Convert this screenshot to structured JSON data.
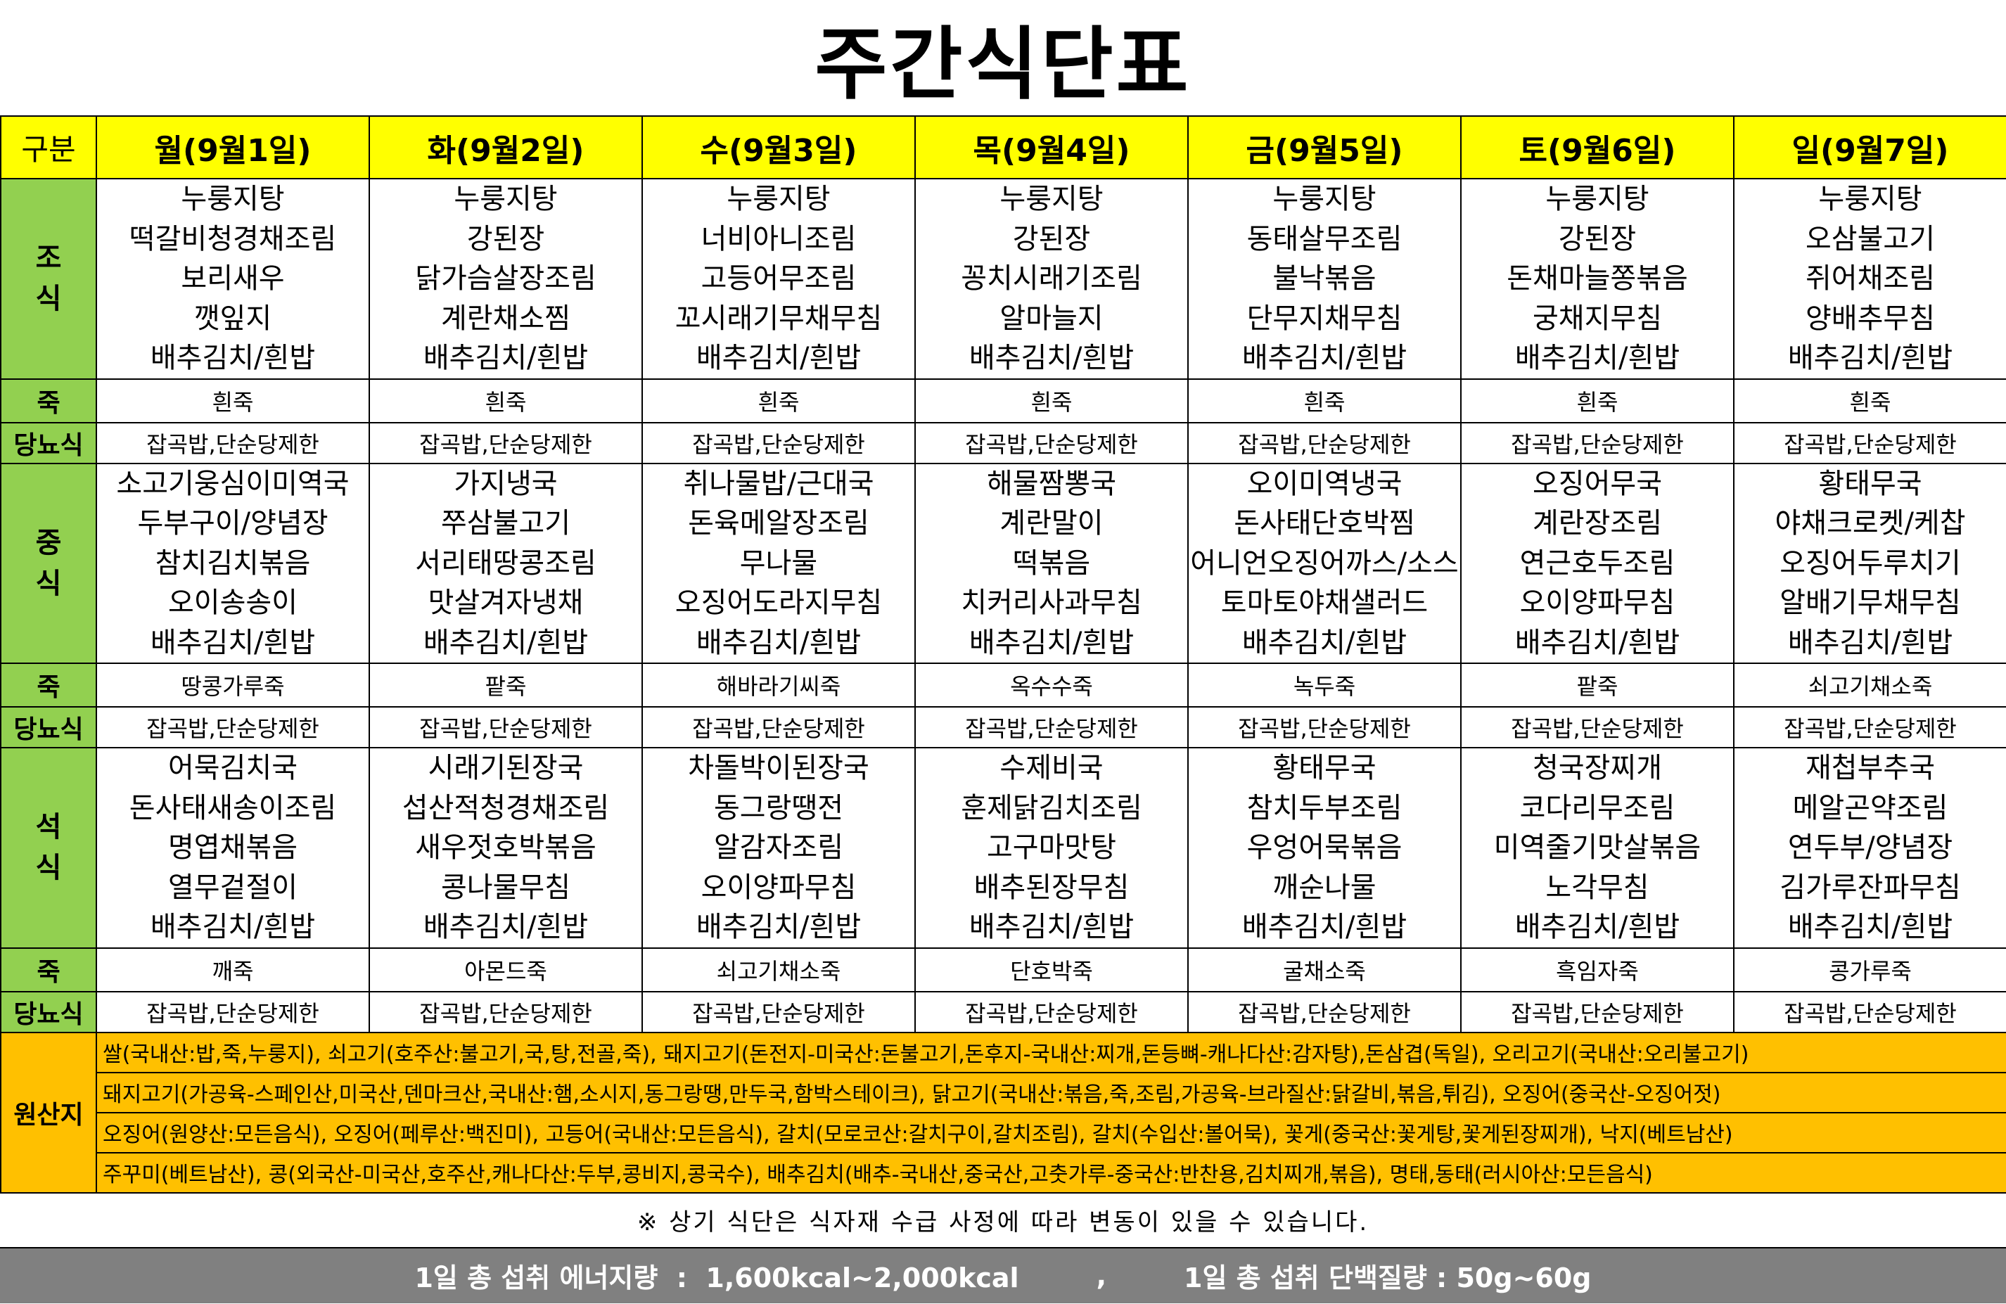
{
  "title": "주간식단표",
  "header": {
    "corner": "구분",
    "days": [
      "월(9월1일)",
      "화(9월2일)",
      "수(9월3일)",
      "목(9월4일)",
      "금(9월5일)",
      "토(9월6일)",
      "일(9월7일)"
    ]
  },
  "labels": {
    "breakfast": "조\n식",
    "lunch": "중\n식",
    "dinner": "석\n식",
    "porridge": "죽",
    "diabetic": "당뇨식",
    "origin": "원산지"
  },
  "diabetic_text": "잡곡밥,단순당제한",
  "breakfast": [
    [
      "누룽지탕",
      "떡갈비청경채조림",
      "보리새우",
      "깻잎지",
      "배추김치/흰밥"
    ],
    [
      "누룽지탕",
      "강된장",
      "닭가슴살장조림",
      "계란채소찜",
      "배추김치/흰밥"
    ],
    [
      "누룽지탕",
      "너비아니조림",
      "고등어무조림",
      "꼬시래기무채무침",
      "배추김치/흰밥"
    ],
    [
      "누룽지탕",
      "강된장",
      "꽁치시래기조림",
      "알마늘지",
      "배추김치/흰밥"
    ],
    [
      "누룽지탕",
      "동태살무조림",
      "불낙볶음",
      "단무지채무침",
      "배추김치/흰밥"
    ],
    [
      "누룽지탕",
      "강된장",
      "돈채마늘쫑볶음",
      "궁채지무침",
      "배추김치/흰밥"
    ],
    [
      "누룽지탕",
      "오삼불고기",
      "쥐어채조림",
      "양배추무침",
      "배추김치/흰밥"
    ]
  ],
  "breakfast_porridge": [
    "흰죽",
    "흰죽",
    "흰죽",
    "흰죽",
    "흰죽",
    "흰죽",
    "흰죽"
  ],
  "lunch": [
    [
      "소고기웅심이미역국",
      "두부구이/양념장",
      "참치김치볶음",
      "오이송송이",
      "배추김치/흰밥"
    ],
    [
      "가지냉국",
      "쭈삼불고기",
      "서리태땅콩조림",
      "맛살겨자냉채",
      "배추김치/흰밥"
    ],
    [
      "취나물밥/근대국",
      "돈육메알장조림",
      "무나물",
      "오징어도라지무침",
      "배추김치/흰밥"
    ],
    [
      "해물짬뽕국",
      "계란말이",
      "떡볶음",
      "치커리사과무침",
      "배추김치/흰밥"
    ],
    [
      "오이미역냉국",
      "돈사태단호박찜",
      "어니언오징어까스/소스",
      "토마토야채샐러드",
      "배추김치/흰밥"
    ],
    [
      "오징어무국",
      "계란장조림",
      "연근호두조림",
      "오이양파무침",
      "배추김치/흰밥"
    ],
    [
      "황태무국",
      "야채크로켓/케찹",
      "오징어두루치기",
      "알배기무채무침",
      "배추김치/흰밥"
    ]
  ],
  "lunch_porridge": [
    "땅콩가루죽",
    "팥죽",
    "해바라기씨죽",
    "옥수수죽",
    "녹두죽",
    "팥죽",
    "쇠고기채소죽"
  ],
  "dinner": [
    [
      "어묵김치국",
      "돈사태새송이조림",
      "명엽채볶음",
      "열무겉절이",
      "배추김치/흰밥"
    ],
    [
      "시래기된장국",
      "섭산적청경채조림",
      "새우젓호박볶음",
      "콩나물무침",
      "배추김치/흰밥"
    ],
    [
      "차돌박이된장국",
      "동그랑땡전",
      "알감자조림",
      "오이양파무침",
      "배추김치/흰밥"
    ],
    [
      "수제비국",
      "훈제닭김치조림",
      "고구마맛탕",
      "배추된장무침",
      "배추김치/흰밥"
    ],
    [
      "황태무국",
      "참치두부조림",
      "우엉어묵볶음",
      "깨순나물",
      "배추김치/흰밥"
    ],
    [
      "청국장찌개",
      "코다리무조림",
      "미역줄기맛살볶음",
      "노각무침",
      "배추김치/흰밥"
    ],
    [
      "재첩부추국",
      "메알곤약조림",
      "연두부/양념장",
      "김가루잔파무침",
      "배추김치/흰밥"
    ]
  ],
  "dinner_porridge": [
    "깨죽",
    "아몬드죽",
    "쇠고기채소죽",
    "단호박죽",
    "굴채소죽",
    "흑임자죽",
    "콩가루죽"
  ],
  "origin_lines": [
    "쌀(국내산:밥,죽,누룽지), 쇠고기(호주산:불고기,국,탕,전골,죽), 돼지고기(돈전지-미국산:돈불고기,돈후지-국내산:찌개,돈등뼈-캐나다산:감자탕),돈삼겹(독일), 오리고기(국내산:오리불고기)",
    "돼지고기(가공육-스페인산,미국산,덴마크산,국내산:햄,소시지,동그랑땡,만두국,함박스테이크), 닭고기(국내산:볶음,죽,조림,가공육-브라질산:닭갈비,볶음,튀김), 오징어(중국산-오징어젓)",
    "오징어(원양산:모든음식), 오징어(페루산:백진미), 고등어(국내산:모든음식), 갈치(모로코산:갈치구이,갈치조림), 갈치(수입산:볼어묵), 꽃게(중국산:꽃게탕,꽃게된장찌개), 낙지(베트남산)",
    "주꾸미(베트남산), 콩(외국산-미국산,호주산,캐나다산:두부,콩비지,콩국수), 배추김치(배추-국내산,중국산,고춧가루-중국산:반찬용,김치찌개,볶음), 명태,동태(러시아산:모든음식)"
  ],
  "note": "※ 상기 식단은 식자재 수급 사정에 따라 변동이 있을 수 있습니다.",
  "footer": {
    "energy": "1일 총 섭취 에너지량  :  1,600kcal~2,000kcal",
    "separator": ",",
    "protein": "1일 총 섭취 단백질량 : 50g~60g"
  },
  "colors": {
    "header": "#FFFF00",
    "label": "#92D050",
    "origin": "#FFC000",
    "footer": "#808080"
  }
}
